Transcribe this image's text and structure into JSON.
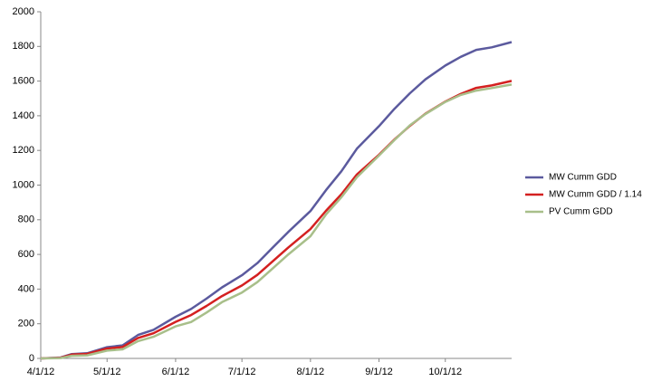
{
  "chart_data": {
    "type": "line",
    "x": [
      "4/1/12",
      "4/10/12",
      "4/15/12",
      "4/22/12",
      "5/1/12",
      "5/8/12",
      "5/15/12",
      "5/22/12",
      "6/1/12",
      "6/8/12",
      "6/15/12",
      "6/22/12",
      "7/1/12",
      "7/8/12",
      "7/15/12",
      "7/22/12",
      "8/1/12",
      "8/8/12",
      "8/15/12",
      "8/22/12",
      "9/1/12",
      "9/8/12",
      "9/15/12",
      "9/22/12",
      "10/1/12",
      "10/8/12",
      "10/15/12",
      "10/22/12",
      "10/31/12"
    ],
    "series": [
      {
        "name": "MW Cumm GDD",
        "color": "#5b5a9e",
        "values": [
          0,
          5,
          25,
          30,
          65,
          75,
          135,
          165,
          240,
          285,
          345,
          410,
          480,
          550,
          640,
          730,
          850,
          970,
          1080,
          1210,
          1340,
          1440,
          1530,
          1610,
          1690,
          1740,
          1780,
          1795,
          1825
        ]
      },
      {
        "name": "MW Cumm GDD / 1.14",
        "color": "#d42020",
        "values": [
          0,
          4,
          22,
          26,
          57,
          66,
          118,
          145,
          211,
          250,
          303,
          360,
          421,
          482,
          561,
          640,
          746,
          851,
          947,
          1061,
          1175,
          1263,
          1342,
          1412,
          1482,
          1526,
          1561,
          1575,
          1601
        ]
      },
      {
        "name": "PV Cumm GDD",
        "color": "#a8bf8a",
        "values": [
          0,
          2,
          15,
          18,
          45,
          52,
          100,
          125,
          185,
          210,
          265,
          325,
          380,
          440,
          520,
          600,
          705,
          830,
          930,
          1045,
          1170,
          1260,
          1345,
          1410,
          1480,
          1520,
          1545,
          1560,
          1580
        ]
      }
    ],
    "xlim": [
      "4/1/12",
      "10/31/12"
    ],
    "xticks": [
      "4/1/12",
      "5/1/12",
      "6/1/12",
      "7/1/12",
      "8/1/12",
      "9/1/12",
      "10/1/12"
    ],
    "ylim": [
      0,
      2000
    ],
    "yticks": [
      0,
      200,
      400,
      600,
      800,
      1000,
      1200,
      1400,
      1600,
      1800,
      2000
    ],
    "legend": "right"
  }
}
